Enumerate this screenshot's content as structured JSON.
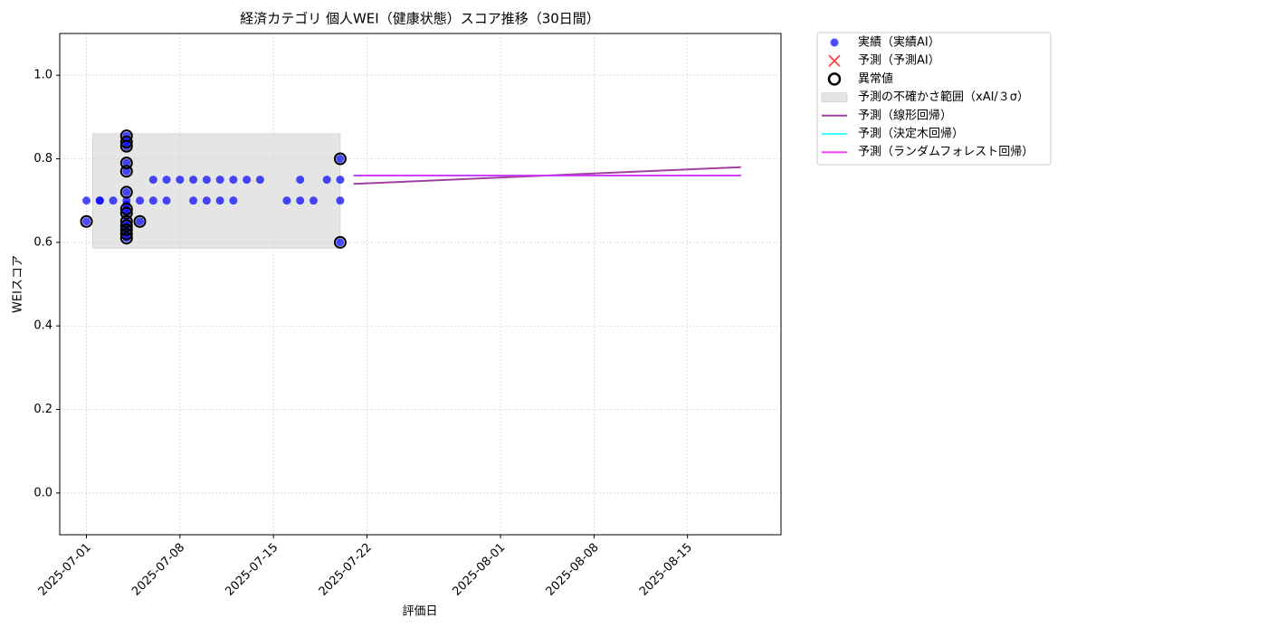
{
  "chart_data": {
    "type": "scatter",
    "title": "経済カテゴリ 個人WEI（健康状態）スコア推移（30日間）",
    "xlabel": "評価日",
    "ylabel": "WEIスコア",
    "xlim": [
      "2025-06-29",
      "2025-08-22"
    ],
    "xticks": [
      "2025-07-01",
      "2025-07-08",
      "2025-07-15",
      "2025-07-22",
      "2025-08-01",
      "2025-08-08",
      "2025-08-15"
    ],
    "ylim": [
      -0.1,
      1.1
    ],
    "yticks": [
      {
        "value": 0,
        "label": "0.0"
      },
      {
        "value": 0.2,
        "label": "0.2"
      },
      {
        "value": 0.4,
        "label": "0.4"
      },
      {
        "value": 0.6,
        "label": "0.6"
      },
      {
        "value": 0.8,
        "label": "0.8"
      },
      {
        "value": 1,
        "label": "1.0"
      }
    ],
    "grid": true,
    "legend": "outside-right",
    "series": [
      {
        "name": "実績（実績AI）",
        "kind": "scatter",
        "color": "#0000ff",
        "x": [
          "2025-07-01",
          "2025-07-01",
          "2025-07-02",
          "2025-07-02",
          "2025-07-03",
          "2025-07-04",
          "2025-07-04",
          "2025-07-04",
          "2025-07-04",
          "2025-07-04",
          "2025-07-04",
          "2025-07-04",
          "2025-07-04",
          "2025-07-04",
          "2025-07-04",
          "2025-07-04",
          "2025-07-04",
          "2025-07-04",
          "2025-07-04",
          "2025-07-04",
          "2025-07-05",
          "2025-07-05",
          "2025-07-06",
          "2025-07-06",
          "2025-07-07",
          "2025-07-07",
          "2025-07-08",
          "2025-07-09",
          "2025-07-09",
          "2025-07-10",
          "2025-07-10",
          "2025-07-11",
          "2025-07-11",
          "2025-07-12",
          "2025-07-12",
          "2025-07-13",
          "2025-07-14",
          "2025-07-16",
          "2025-07-17",
          "2025-07-17",
          "2025-07-18",
          "2025-07-19",
          "2025-07-20",
          "2025-07-20",
          "2025-07-20",
          "2025-07-20"
        ],
        "values": [
          0.65,
          0.7,
          0.7,
          0.7,
          0.7,
          0.61,
          0.62,
          0.63,
          0.64,
          0.67,
          0.68,
          0.69,
          0.7,
          0.72,
          0.77,
          0.79,
          0.83,
          0.84,
          0.855,
          0.65,
          0.65,
          0.7,
          0.75,
          0.7,
          0.75,
          0.7,
          0.75,
          0.75,
          0.7,
          0.75,
          0.7,
          0.75,
          0.7,
          0.75,
          0.7,
          0.75,
          0.75,
          0.7,
          0.75,
          0.7,
          0.7,
          0.75,
          0.8,
          0.75,
          0.7,
          0.6
        ]
      },
      {
        "name": "予測（予測AI）",
        "kind": "cross",
        "color": "#ff0000",
        "x": [],
        "values": []
      },
      {
        "name": "異常値",
        "kind": "ring",
        "color": "#000000",
        "x": [
          "2025-07-01",
          "2025-07-04",
          "2025-07-04",
          "2025-07-04",
          "2025-07-04",
          "2025-07-04",
          "2025-07-04",
          "2025-07-04",
          "2025-07-04",
          "2025-07-04",
          "2025-07-04",
          "2025-07-04",
          "2025-07-04",
          "2025-07-04",
          "2025-07-05",
          "2025-07-20",
          "2025-07-20"
        ],
        "values": [
          0.65,
          0.61,
          0.62,
          0.63,
          0.64,
          0.67,
          0.68,
          0.72,
          0.77,
          0.79,
          0.83,
          0.84,
          0.855,
          0.65,
          0.65,
          0.8,
          0.6
        ]
      },
      {
        "name": "予測の不確かさ範囲（xAI/３σ）",
        "kind": "band",
        "color": "#d3d3d3",
        "x": [
          "2025-07-01",
          "2025-07-20"
        ],
        "lower": 0.586,
        "upper": 0.86
      },
      {
        "name": "予測（線形回帰）",
        "kind": "line",
        "color": "#800080",
        "x": [
          "2025-07-21",
          "2025-08-19"
        ],
        "values": [
          0.74,
          0.78
        ]
      },
      {
        "name": "予測（決定木回帰）",
        "kind": "line",
        "color": "#00ffff",
        "x": [
          "2025-07-21",
          "2025-08-19"
        ],
        "values": [
          0.76,
          0.76
        ]
      },
      {
        "name": "予測（ランダムフォレスト回帰）",
        "kind": "line",
        "color": "#ff00ff",
        "x": [
          "2025-07-21",
          "2025-08-19"
        ],
        "values": [
          0.76,
          0.76
        ]
      }
    ]
  }
}
